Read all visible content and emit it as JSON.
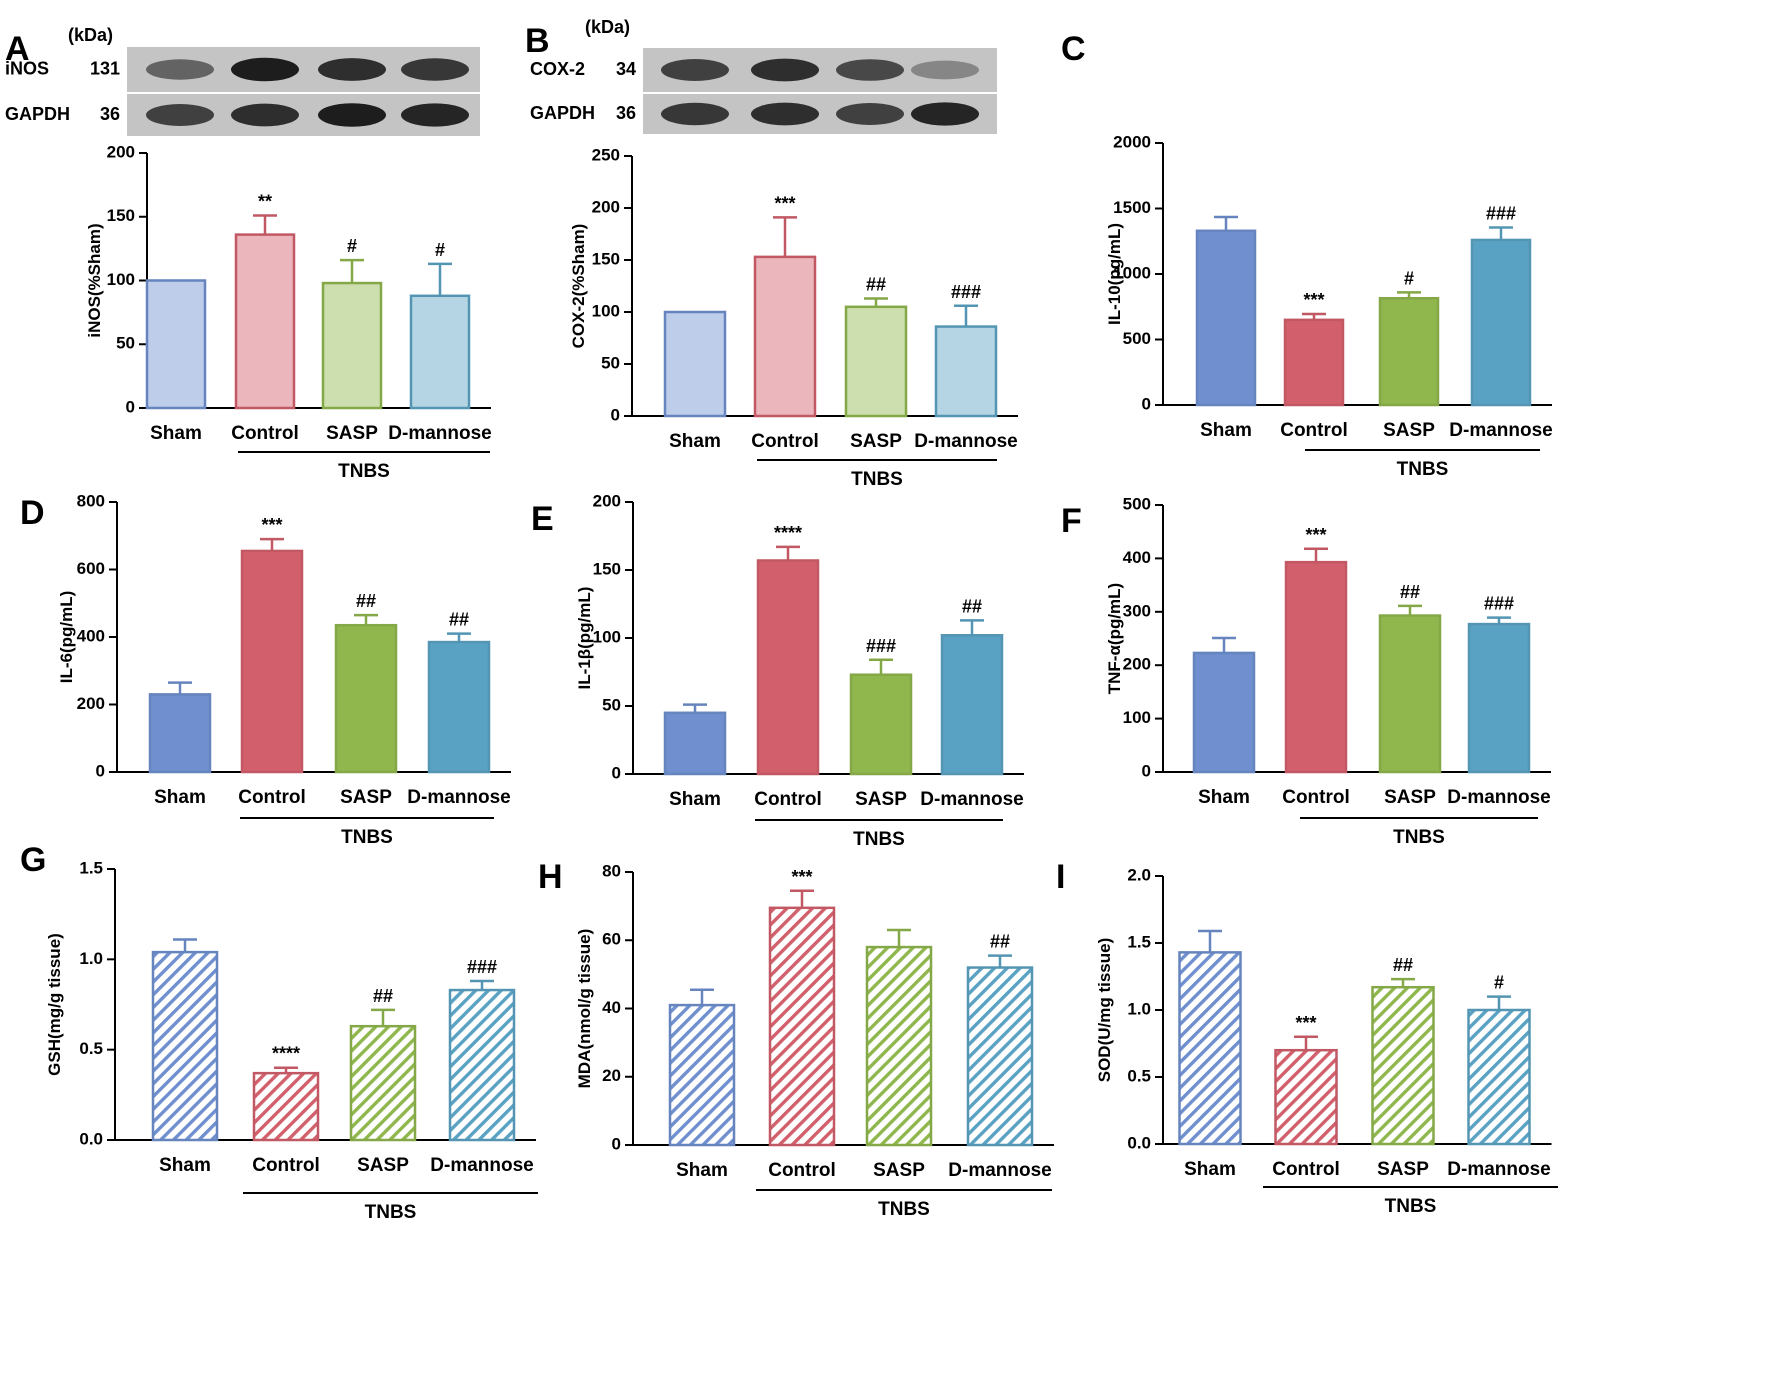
{
  "colors": {
    "sham": "#6f8fcf",
    "control": "#d2606c",
    "sasp": "#8fb74d",
    "dmannose": "#5aa2c3"
  },
  "chart_data": [
    {
      "panel": "A",
      "type": "bar",
      "style": "light",
      "ylabel": "iNOS(%Sham)",
      "ylim": [
        0,
        200
      ],
      "yticks": [
        0,
        50,
        100,
        150,
        200
      ],
      "tick_labels": [
        "0",
        "50",
        "100",
        "150",
        "200"
      ],
      "categories": [
        "Sham",
        "Control",
        "SASP",
        "D-mannose"
      ],
      "group_label": "TNBS",
      "values": [
        100,
        136,
        98,
        88
      ],
      "errors": [
        0,
        15,
        18,
        25
      ],
      "annotations": [
        "",
        "**",
        "#",
        "#"
      ],
      "blot": {
        "unit": "(kDa)",
        "rows": [
          {
            "name": "iNOS",
            "kda": "131"
          },
          {
            "name": "GAPDH",
            "kda": "36"
          }
        ]
      }
    },
    {
      "panel": "B",
      "type": "bar",
      "style": "light",
      "ylabel": "COX-2(%Sham)",
      "ylim": [
        0,
        250
      ],
      "yticks": [
        0,
        50,
        100,
        150,
        200,
        250
      ],
      "tick_labels": [
        "0",
        "50",
        "100",
        "150",
        "200",
        "250"
      ],
      "categories": [
        "Sham",
        "Control",
        "SASP",
        "D-mannose"
      ],
      "group_label": "TNBS",
      "values": [
        100,
        153,
        105,
        86
      ],
      "errors": [
        0,
        38,
        8,
        20
      ],
      "annotations": [
        "",
        "***",
        "##",
        "###"
      ],
      "blot": {
        "unit": "(kDa)",
        "rows": [
          {
            "name": "COX-2",
            "kda": "34"
          },
          {
            "name": "GAPDH",
            "kda": "36"
          }
        ]
      }
    },
    {
      "panel": "C",
      "type": "bar",
      "style": "solid",
      "ylabel": "IL-10(pg/mL)",
      "ylim": [
        0,
        2000
      ],
      "yticks": [
        0,
        500,
        1000,
        1500,
        2000
      ],
      "tick_labels": [
        "0",
        "500",
        "1000",
        "1500",
        "2000"
      ],
      "categories": [
        "Sham",
        "Control",
        "SASP",
        "D-mannose"
      ],
      "group_label": "TNBS",
      "values": [
        1330,
        650,
        815,
        1260
      ],
      "errors": [
        105,
        45,
        45,
        95
      ],
      "annotations": [
        "",
        "***",
        "#",
        "###"
      ]
    },
    {
      "panel": "D",
      "type": "bar",
      "style": "solid",
      "ylabel": "IL-6(pg/mL)",
      "ylim": [
        0,
        800
      ],
      "yticks": [
        0,
        200,
        400,
        600,
        800
      ],
      "tick_labels": [
        "0",
        "200",
        "400",
        "600",
        "800"
      ],
      "categories": [
        "Sham",
        "Control",
        "SASP",
        "D-mannose"
      ],
      "group_label": "TNBS",
      "values": [
        230,
        655,
        435,
        385
      ],
      "errors": [
        35,
        35,
        30,
        25
      ],
      "annotations": [
        "",
        "***",
        "##",
        "##"
      ]
    },
    {
      "panel": "E",
      "type": "bar",
      "style": "solid",
      "ylabel": "IL-1β(pg/mL)",
      "ylim": [
        0,
        200
      ],
      "yticks": [
        0,
        50,
        100,
        150,
        200
      ],
      "tick_labels": [
        "0",
        "50",
        "100",
        "150",
        "200"
      ],
      "categories": [
        "Sham",
        "Control",
        "SASP",
        "D-mannose"
      ],
      "group_label": "TNBS",
      "values": [
        45,
        157,
        73,
        102
      ],
      "errors": [
        6,
        10,
        11,
        11
      ],
      "annotations": [
        "",
        "****",
        "###",
        "##"
      ]
    },
    {
      "panel": "F",
      "type": "bar",
      "style": "solid",
      "ylabel": "TNF-α(pg/mL)",
      "ylim": [
        0,
        500
      ],
      "yticks": [
        0,
        100,
        200,
        300,
        400,
        500
      ],
      "tick_labels": [
        "0",
        "100",
        "200",
        "300",
        "400",
        "500"
      ],
      "categories": [
        "Sham",
        "Control",
        "SASP",
        "D-mannose"
      ],
      "group_label": "TNBS",
      "values": [
        223,
        393,
        293,
        277
      ],
      "errors": [
        28,
        25,
        18,
        12
      ],
      "annotations": [
        "",
        "***",
        "##",
        "###"
      ]
    },
    {
      "panel": "G",
      "type": "bar",
      "style": "hatched",
      "ylabel": "GSH(mg/g tissue)",
      "ylim": [
        0,
        1.5
      ],
      "yticks": [
        0,
        0.5,
        1.0,
        1.5
      ],
      "tick_labels": [
        "0.0",
        "0.5",
        "1.0",
        "1.5"
      ],
      "categories": [
        "Sham",
        "Control",
        "SASP",
        "D-mannose"
      ],
      "group_label": "TNBS",
      "values": [
        1.04,
        0.37,
        0.63,
        0.83
      ],
      "errors": [
        0.07,
        0.03,
        0.09,
        0.05
      ],
      "annotations": [
        "",
        "****",
        "##",
        "###"
      ]
    },
    {
      "panel": "H",
      "type": "bar",
      "style": "hatched",
      "ylabel": "MDA(nmol/g tissue)",
      "ylim": [
        0,
        80
      ],
      "yticks": [
        0,
        20,
        40,
        60,
        80
      ],
      "tick_labels": [
        "0",
        "20",
        "40",
        "60",
        "80"
      ],
      "categories": [
        "Sham",
        "Control",
        "SASP",
        "D-mannose"
      ],
      "group_label": "TNBS",
      "values": [
        41,
        69.5,
        58,
        52
      ],
      "errors": [
        4.5,
        5,
        5,
        3.5
      ],
      "annotations": [
        "",
        "***",
        "",
        "##"
      ]
    },
    {
      "panel": "I",
      "type": "bar",
      "style": "hatched",
      "ylabel": "SOD(U/mg tissue)",
      "ylim": [
        0,
        2.0
      ],
      "yticks": [
        0,
        0.5,
        1.0,
        1.5,
        2.0
      ],
      "tick_labels": [
        "0.0",
        "0.5",
        "1.0",
        "1.5",
        "2.0"
      ],
      "categories": [
        "Sham",
        "Control",
        "SASP",
        "D-mannose"
      ],
      "group_label": "TNBS",
      "values": [
        1.43,
        0.7,
        1.17,
        1.0
      ],
      "errors": [
        0.16,
        0.1,
        0.06,
        0.1
      ],
      "annotations": [
        "",
        "***",
        "##",
        "#"
      ]
    }
  ]
}
